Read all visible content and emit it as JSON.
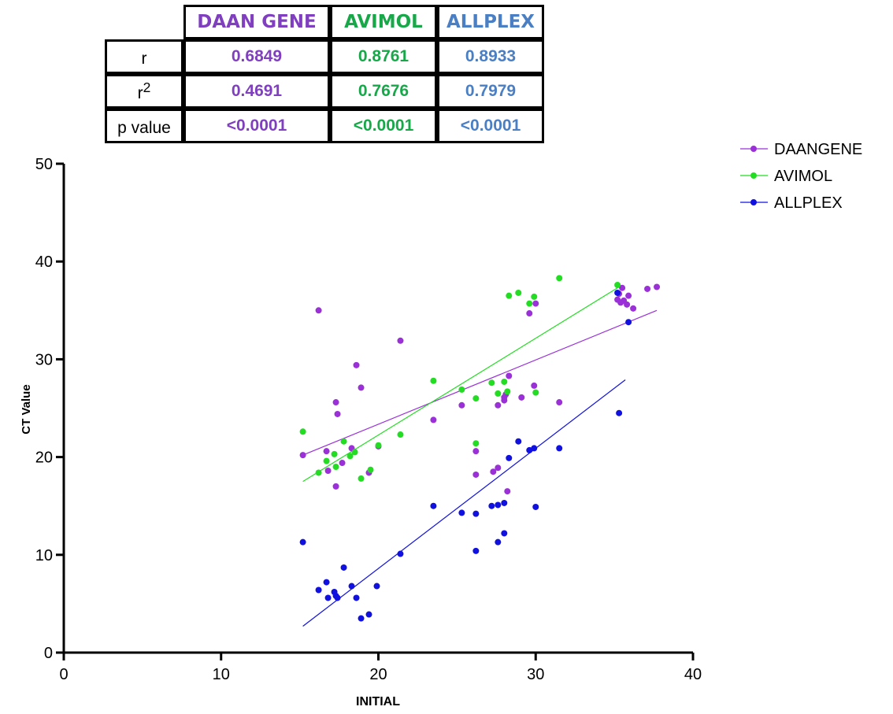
{
  "table": {
    "headers": [
      "DAAN GENE",
      "AVIMOL",
      "ALLPLEX"
    ],
    "header_colors": [
      "#7f3fbf",
      "#18a84a",
      "#4a7fc4"
    ],
    "rows": [
      {
        "label": "r",
        "sup": "",
        "values": [
          "0.6849",
          "0.8761",
          "0.8933"
        ]
      },
      {
        "label": "r",
        "sup": "2",
        "values": [
          "0.4691",
          "0.7676",
          "0.7979"
        ]
      },
      {
        "label": "p value",
        "sup": "",
        "values": [
          "<0.0001",
          "<0.0001",
          "<0.0001"
        ]
      }
    ]
  },
  "chart_data": {
    "type": "scatter",
    "xlabel": "INITIAL",
    "ylabel": "CT Value",
    "xlim": [
      0,
      40
    ],
    "ylim": [
      0,
      50
    ],
    "xticks": [
      0,
      10,
      20,
      30,
      40
    ],
    "yticks": [
      0,
      10,
      20,
      30,
      40,
      50
    ],
    "grid": false,
    "legend_position": "top-right",
    "series": [
      {
        "name": "DAANGENE",
        "color": "#9b30d9",
        "points": [
          [
            15.2,
            20.2
          ],
          [
            16.2,
            35.0
          ],
          [
            16.7,
            20.6
          ],
          [
            16.8,
            18.6
          ],
          [
            17.3,
            25.6
          ],
          [
            17.3,
            17.0
          ],
          [
            17.4,
            24.4
          ],
          [
            17.7,
            19.4
          ],
          [
            18.3,
            20.9
          ],
          [
            18.6,
            29.4
          ],
          [
            18.9,
            27.1
          ],
          [
            19.4,
            18.4
          ],
          [
            20.0,
            21.1
          ],
          [
            21.4,
            31.9
          ],
          [
            23.5,
            23.8
          ],
          [
            25.3,
            25.3
          ],
          [
            26.2,
            20.6
          ],
          [
            26.2,
            18.2
          ],
          [
            27.3,
            18.5
          ],
          [
            27.6,
            18.9
          ],
          [
            27.6,
            25.3
          ],
          [
            28.0,
            26.1
          ],
          [
            28.0,
            25.8
          ],
          [
            28.1,
            26.4
          ],
          [
            28.2,
            16.5
          ],
          [
            28.3,
            28.3
          ],
          [
            29.1,
            26.1
          ],
          [
            29.6,
            34.7
          ],
          [
            29.9,
            27.3
          ],
          [
            30.0,
            35.7
          ],
          [
            31.5,
            25.6
          ],
          [
            35.2,
            36.1
          ],
          [
            35.3,
            36.7
          ],
          [
            35.4,
            35.8
          ],
          [
            35.5,
            37.3
          ],
          [
            35.6,
            36.0
          ],
          [
            35.8,
            35.6
          ],
          [
            35.9,
            36.5
          ],
          [
            36.2,
            35.2
          ],
          [
            37.1,
            37.2
          ],
          [
            37.7,
            37.4
          ]
        ],
        "fit": [
          [
            15.2,
            20.2
          ],
          [
            37.7,
            35.0
          ]
        ]
      },
      {
        "name": "AVIMOL",
        "color": "#22dd22",
        "points": [
          [
            15.2,
            22.6
          ],
          [
            16.2,
            18.4
          ],
          [
            16.7,
            19.6
          ],
          [
            17.2,
            20.3
          ],
          [
            17.3,
            19.0
          ],
          [
            17.8,
            21.6
          ],
          [
            18.2,
            20.1
          ],
          [
            18.5,
            20.5
          ],
          [
            18.9,
            17.8
          ],
          [
            19.5,
            18.7
          ],
          [
            20.0,
            21.2
          ],
          [
            21.4,
            22.3
          ],
          [
            23.5,
            27.8
          ],
          [
            25.3,
            26.9
          ],
          [
            26.2,
            26.0
          ],
          [
            26.2,
            21.4
          ],
          [
            27.2,
            27.6
          ],
          [
            27.6,
            26.5
          ],
          [
            28.0,
            27.7
          ],
          [
            28.2,
            26.7
          ],
          [
            28.3,
            36.5
          ],
          [
            28.9,
            36.8
          ],
          [
            29.6,
            35.7
          ],
          [
            29.9,
            36.4
          ],
          [
            30.0,
            26.6
          ],
          [
            31.5,
            38.3
          ],
          [
            35.2,
            37.6
          ]
        ],
        "fit": [
          [
            15.2,
            17.5
          ],
          [
            35.2,
            37.3
          ]
        ]
      },
      {
        "name": "ALLPLEX",
        "color": "#1010e0",
        "points": [
          [
            15.2,
            11.3
          ],
          [
            16.2,
            6.4
          ],
          [
            16.7,
            7.2
          ],
          [
            16.8,
            5.6
          ],
          [
            17.2,
            6.2
          ],
          [
            17.3,
            5.8
          ],
          [
            17.4,
            5.6
          ],
          [
            17.8,
            8.7
          ],
          [
            18.3,
            6.8
          ],
          [
            18.6,
            5.6
          ],
          [
            18.9,
            3.5
          ],
          [
            19.4,
            3.9
          ],
          [
            19.9,
            6.8
          ],
          [
            21.4,
            10.1
          ],
          [
            23.5,
            15.0
          ],
          [
            25.3,
            14.3
          ],
          [
            26.2,
            14.2
          ],
          [
            26.2,
            10.4
          ],
          [
            27.2,
            15.0
          ],
          [
            27.6,
            15.1
          ],
          [
            27.6,
            11.3
          ],
          [
            28.0,
            15.3
          ],
          [
            28.0,
            12.2
          ],
          [
            28.3,
            19.9
          ],
          [
            28.9,
            21.6
          ],
          [
            29.6,
            20.7
          ],
          [
            29.9,
            20.9
          ],
          [
            30.0,
            14.9
          ],
          [
            31.5,
            20.9
          ],
          [
            35.3,
            24.5
          ],
          [
            35.9,
            33.8
          ],
          [
            35.2,
            36.8
          ]
        ],
        "fit": [
          [
            15.2,
            2.7
          ],
          [
            35.7,
            27.9
          ]
        ]
      }
    ]
  }
}
